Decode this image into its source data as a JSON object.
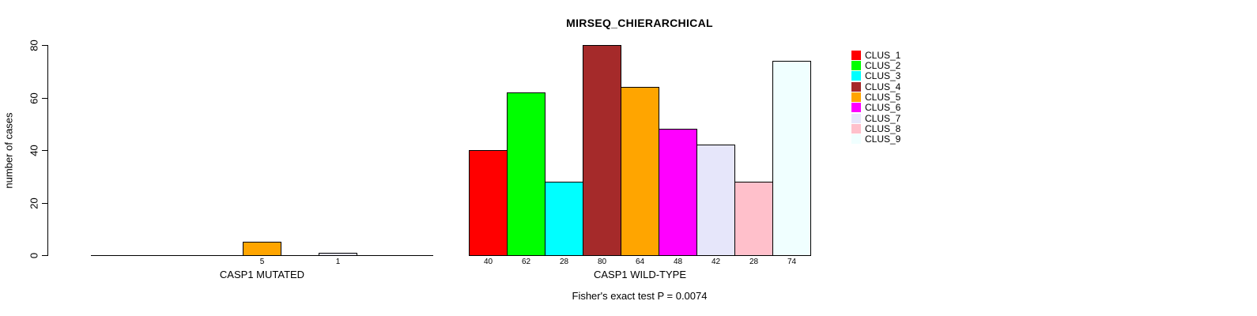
{
  "chart_data": {
    "type": "bar",
    "title": "MIRSEQ_CHIERARCHICAL",
    "ylabel": "number of cases",
    "ylim": [
      0,
      80
    ],
    "yticks": [
      "0",
      "20",
      "40",
      "60",
      "80"
    ],
    "grid": false,
    "legend_position": "right",
    "categories": [
      "CLUS_1",
      "CLUS_2",
      "CLUS_3",
      "CLUS_4",
      "CLUS_5",
      "CLUS_6",
      "CLUS_7",
      "CLUS_8",
      "CLUS_9"
    ],
    "colors": [
      "#FF0000",
      "#00FF00",
      "#00FFFF",
      "#A52A2A",
      "#FFA500",
      "#FF00FF",
      "#E6E6FA",
      "#FFC0CB",
      "#F0FFFF"
    ],
    "groups": [
      {
        "label": "CASP1 MUTATED",
        "values": [
          0,
          0,
          0,
          0,
          5,
          0,
          1,
          0,
          0
        ],
        "bar_labels": [
          "",
          "",
          "",
          "",
          "5",
          "",
          "1",
          "",
          ""
        ]
      },
      {
        "label": "CASP1 WILD-TYPE",
        "values": [
          40,
          62,
          28,
          80,
          64,
          48,
          42,
          28,
          74
        ],
        "bar_labels": [
          "40",
          "62",
          "28",
          "80",
          "64",
          "48",
          "42",
          "28",
          "74"
        ]
      }
    ],
    "annotation": "Fisher's exact test P = 0.0074",
    "axis_color": "#000000",
    "background_color": "#FFFFFF"
  }
}
